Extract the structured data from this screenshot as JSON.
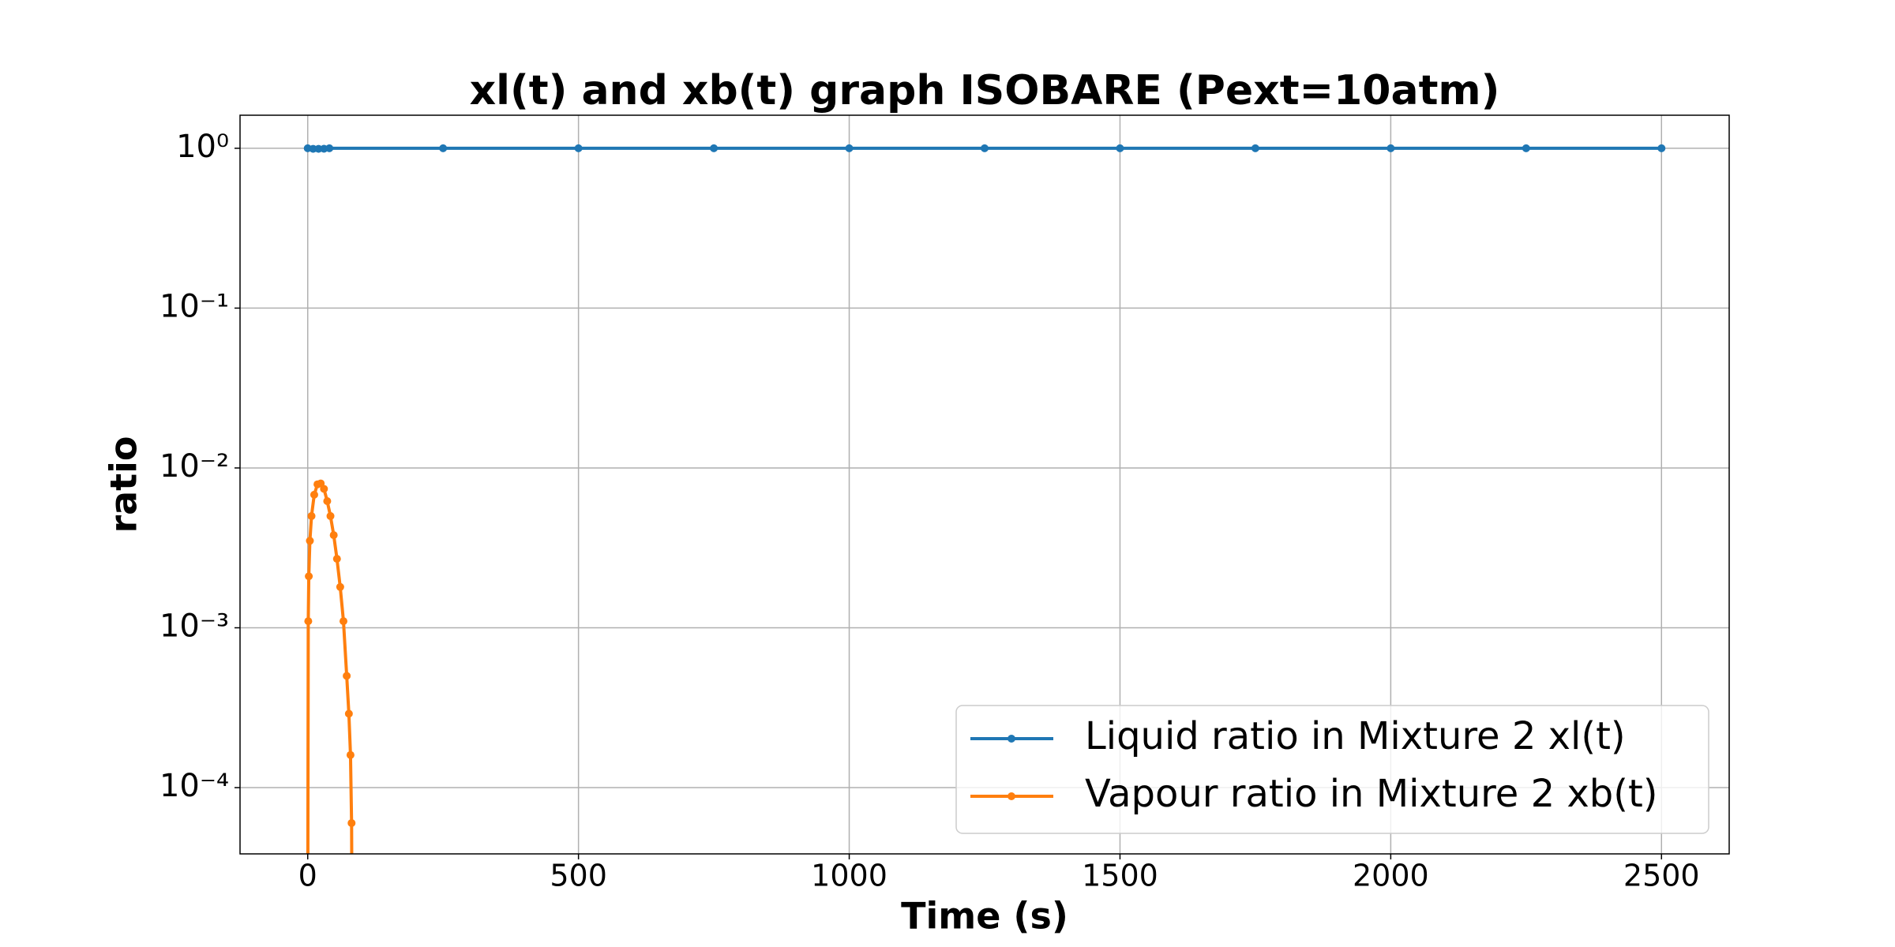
{
  "chart_data": {
    "type": "line",
    "title": "xl(t) and xb(t) graph ISOBARE (Pext=10atm)",
    "x_label": "Time (s)",
    "y_label": "ratio",
    "y_scale": "log",
    "grid": true,
    "legend_position": "lower right",
    "xlim": [
      -125,
      2625
    ],
    "xticks": [
      0,
      500,
      1000,
      1500,
      2000,
      2500
    ],
    "ylim": [
      3.85e-05,
      1.61
    ],
    "yticks": [
      {
        "value": 1,
        "label": "10⁰"
      },
      {
        "value": 0.1,
        "label": "10⁻¹"
      },
      {
        "value": 0.01,
        "label": "10⁻²"
      },
      {
        "value": 0.001,
        "label": "10⁻³"
      },
      {
        "value": 0.0001,
        "label": "10⁻⁴"
      }
    ],
    "series": [
      {
        "name": "Liquid ratio in Mixture 2 xl(t)",
        "color": "#1f77b4",
        "x": [
          0,
          10,
          20,
          30,
          40,
          250,
          500,
          750,
          1000,
          1250,
          1500,
          1750,
          2000,
          2250,
          2500
        ],
        "values": [
          1,
          0.992,
          0.992,
          0.993,
          1,
          1,
          1,
          1,
          1,
          1,
          1,
          1,
          1,
          1,
          1
        ]
      },
      {
        "name": "Vapour ratio in Mixture 2 xb(t)",
        "color": "#ff7f0e",
        "x": [
          0,
          1,
          2,
          4,
          7,
          12,
          18,
          24,
          30,
          36,
          42,
          48,
          54,
          60,
          66,
          72,
          76,
          79,
          81,
          82
        ],
        "values": [
          1e-05,
          0.0011,
          0.0021,
          0.0035,
          0.005,
          0.0068,
          0.0079,
          0.008,
          0.0074,
          0.0062,
          0.005,
          0.0038,
          0.0027,
          0.0018,
          0.0011,
          0.0005,
          0.00029,
          0.00016,
          6e-05,
          1e-05
        ]
      }
    ]
  }
}
